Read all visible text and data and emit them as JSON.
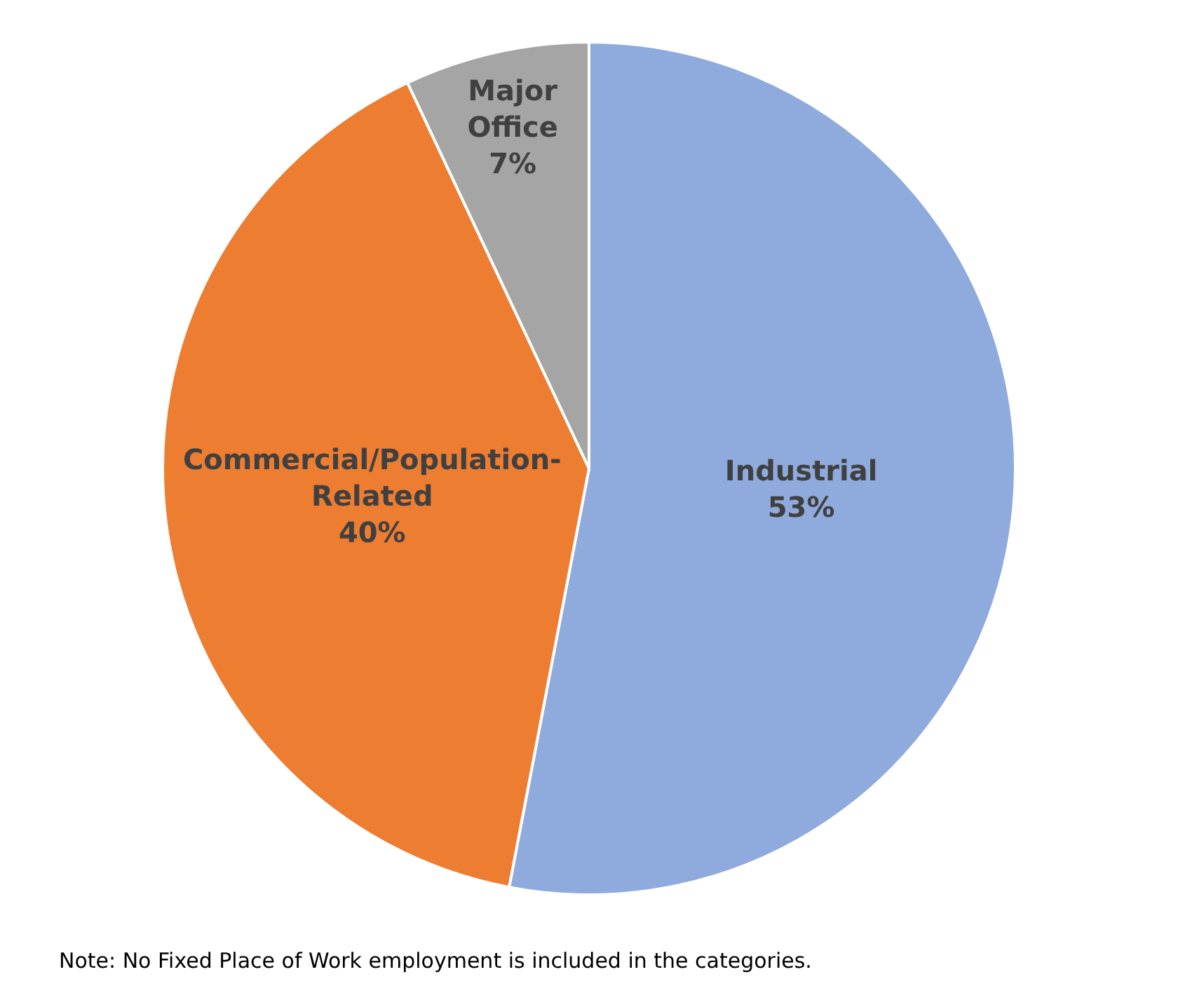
{
  "chart_data": {
    "type": "pie",
    "categories": [
      "Industrial",
      "Commercial/Population-Related",
      "Major Office"
    ],
    "values": [
      53,
      40,
      7
    ],
    "value_labels": [
      "53%",
      "40%",
      "7%"
    ],
    "colors": [
      "#8faadc",
      "#ed7d31",
      "#a5a5a5"
    ],
    "legend": false,
    "annotations": [
      "Note: No Fixed Place of Work employment is included in the categories."
    ]
  }
}
